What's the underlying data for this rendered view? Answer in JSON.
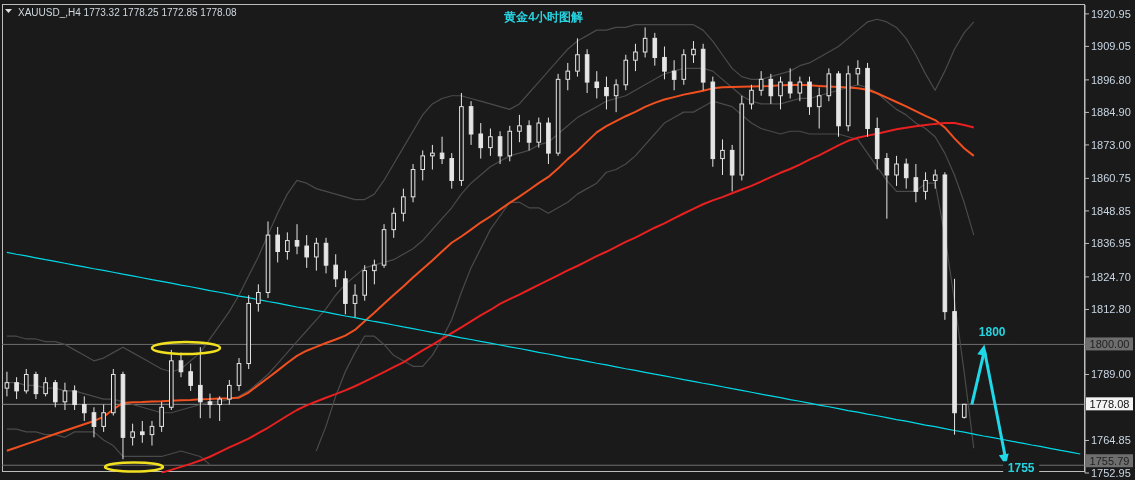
{
  "chart_data": {
    "type": "candlestick",
    "title": "黄金4小时图解",
    "annotations": [
      "XAUUSD_,H4  1773.32 1778.25 1772.85 1778.08",
      "1800",
      "1755"
    ],
    "categories": [
      null,
      null,
      null,
      null,
      null,
      null,
      null,
      null,
      null,
      null,
      null,
      null,
      null,
      null,
      null,
      null,
      null,
      null,
      null,
      null,
      null,
      null,
      null,
      null,
      null,
      null,
      null,
      null,
      null,
      null,
      null,
      null,
      null,
      null,
      null,
      null,
      null,
      null,
      null,
      null,
      null,
      null,
      null,
      null,
      null,
      null,
      null,
      null,
      null,
      null,
      null,
      null,
      null,
      null,
      null,
      null,
      null,
      null,
      null,
      null,
      null,
      null,
      null,
      null,
      null,
      null,
      null,
      null,
      null,
      null,
      null,
      null,
      null,
      null,
      null,
      null,
      null,
      null,
      null,
      null,
      null,
      null,
      null,
      null,
      null,
      null,
      null,
      null,
      null,
      null,
      null,
      null,
      null,
      null,
      null,
      null,
      null,
      null,
      null,
      null,
      null,
      null,
      null,
      null,
      null,
      null,
      null,
      null,
      null,
      null,
      null,
      null
    ],
    "color": "#e6e6e6",
    "ohlc": [
      [
        1784,
        1790,
        1781,
        1786
      ],
      [
        1786,
        1788,
        1780,
        1783
      ],
      [
        1783,
        1791,
        1782,
        1789
      ],
      [
        1789,
        1790,
        1780,
        1782
      ],
      [
        1782,
        1788,
        1781,
        1786
      ],
      [
        1786,
        1787,
        1777,
        1779
      ],
      [
        1779,
        1786,
        1776,
        1783
      ],
      [
        1783,
        1785,
        1776,
        1778
      ],
      [
        1778,
        1781,
        1772,
        1775
      ],
      [
        1775,
        1777,
        1766,
        1770
      ],
      [
        1770,
        1778,
        1768,
        1775
      ],
      [
        1775,
        1791,
        1774,
        1789
      ],
      [
        1789,
        1790,
        1758,
        1766
      ],
      [
        1766,
        1771,
        1763,
        1768
      ],
      [
        1768,
        1772,
        1764,
        1767
      ],
      [
        1767,
        1772,
        1763,
        1770
      ],
      [
        1770,
        1779,
        1768,
        1777
      ],
      [
        1777,
        1798,
        1776,
        1794
      ],
      [
        1794,
        1797,
        1788,
        1790
      ],
      [
        1790,
        1793,
        1783,
        1785
      ],
      [
        1785,
        1799,
        1773,
        1779
      ],
      [
        1779,
        1782,
        1773,
        1778
      ],
      [
        1778,
        1781,
        1772,
        1780
      ],
      [
        1780,
        1787,
        1778,
        1785
      ],
      [
        1785,
        1795,
        1783,
        1793
      ],
      [
        1793,
        1818,
        1791,
        1815
      ],
      [
        1815,
        1822,
        1812,
        1819
      ],
      [
        1819,
        1845,
        1817,
        1840
      ],
      [
        1840,
        1843,
        1830,
        1834
      ],
      [
        1834,
        1841,
        1831,
        1838
      ],
      [
        1838,
        1844,
        1833,
        1836
      ],
      [
        1836,
        1840,
        1828,
        1832
      ],
      [
        1832,
        1839,
        1827,
        1837
      ],
      [
        1837,
        1839,
        1826,
        1829
      ],
      [
        1829,
        1833,
        1821,
        1824
      ],
      [
        1824,
        1827,
        1811,
        1815
      ],
      [
        1815,
        1822,
        1810,
        1818
      ],
      [
        1818,
        1829,
        1816,
        1827
      ],
      [
        1827,
        1831,
        1822,
        1829
      ],
      [
        1829,
        1844,
        1828,
        1842
      ],
      [
        1842,
        1850,
        1839,
        1848
      ],
      [
        1848,
        1857,
        1845,
        1854
      ],
      [
        1854,
        1866,
        1852,
        1864
      ],
      [
        1864,
        1871,
        1860,
        1869
      ],
      [
        1869,
        1873,
        1864,
        1870
      ],
      [
        1870,
        1876,
        1866,
        1868
      ],
      [
        1868,
        1870,
        1857,
        1860
      ],
      [
        1860,
        1892,
        1858,
        1887
      ],
      [
        1887,
        1889,
        1873,
        1877
      ],
      [
        1877,
        1881,
        1868,
        1872
      ],
      [
        1872,
        1879,
        1869,
        1876
      ],
      [
        1876,
        1878,
        1866,
        1869
      ],
      [
        1869,
        1880,
        1867,
        1878
      ],
      [
        1878,
        1884,
        1874,
        1880
      ],
      [
        1880,
        1882,
        1871,
        1874
      ],
      [
        1874,
        1883,
        1872,
        1881
      ],
      [
        1881,
        1883,
        1866,
        1870
      ],
      [
        1870,
        1899,
        1869,
        1897
      ],
      [
        1897,
        1903,
        1893,
        1900
      ],
      [
        1900,
        1912,
        1898,
        1906
      ],
      [
        1906,
        1908,
        1892,
        1896
      ],
      [
        1896,
        1900,
        1890,
        1894
      ],
      [
        1894,
        1898,
        1886,
        1891
      ],
      [
        1891,
        1897,
        1885,
        1895
      ],
      [
        1895,
        1906,
        1893,
        1904
      ],
      [
        1904,
        1910,
        1900,
        1907
      ],
      [
        1907,
        1916,
        1905,
        1912
      ],
      [
        1912,
        1914,
        1902,
        1905
      ],
      [
        1905,
        1909,
        1897,
        1900
      ],
      [
        1900,
        1904,
        1893,
        1897
      ],
      [
        1897,
        1908,
        1895,
        1906
      ],
      [
        1906,
        1911,
        1903,
        1908
      ],
      [
        1908,
        1910,
        1893,
        1896
      ],
      [
        1896,
        1898,
        1865,
        1868
      ],
      [
        1868,
        1875,
        1862,
        1871
      ],
      [
        1871,
        1873,
        1856,
        1862
      ],
      [
        1862,
        1891,
        1860,
        1888
      ],
      [
        1888,
        1895,
        1886,
        1893
      ],
      [
        1893,
        1900,
        1891,
        1897
      ],
      [
        1897,
        1899,
        1888,
        1891
      ],
      [
        1891,
        1898,
        1886,
        1896
      ],
      [
        1896,
        1901,
        1890,
        1892
      ],
      [
        1892,
        1898,
        1889,
        1896
      ],
      [
        1896,
        1898,
        1884,
        1887
      ],
      [
        1887,
        1894,
        1879,
        1891
      ],
      [
        1891,
        1901,
        1889,
        1899
      ],
      [
        1899,
        1900,
        1876,
        1880
      ],
      [
        1880,
        1902,
        1878,
        1899
      ],
      [
        1899,
        1904,
        1895,
        1901
      ],
      [
        1901,
        1903,
        1876,
        1879
      ],
      [
        1879,
        1883,
        1864,
        1868
      ],
      [
        1868,
        1870,
        1846,
        1862
      ],
      [
        1862,
        1869,
        1858,
        1866
      ],
      [
        1866,
        1868,
        1857,
        1861
      ],
      [
        1861,
        1866,
        1852,
        1856
      ],
      [
        1856,
        1863,
        1853,
        1860
      ],
      [
        1860,
        1864,
        1857,
        1862
      ],
      [
        1862,
        1863,
        1809,
        1812
      ],
      [
        1812,
        1824,
        1767,
        1775
      ],
      [
        1773.32,
        1778.25,
        1772.85,
        1778.08
      ],
      null,
      null,
      null,
      null,
      null,
      null,
      null,
      null,
      null,
      null,
      null,
      null
    ],
    "series": [
      {
        "type": "line",
        "color": "#4a4a4a",
        "values": [
          1803,
          1803,
          1802,
          1802,
          1801,
          1801,
          1800,
          1798,
          1796,
          1794,
          1795,
          1797,
          1799,
          1797,
          1795,
          1793,
          1791,
          1790,
          1791,
          1794,
          1797,
          1802,
          1807,
          1812,
          1818,
          1825,
          1832,
          1840,
          1848,
          1855,
          1860,
          1859,
          1857,
          1856,
          1855,
          1854,
          1853,
          1853,
          1855,
          1860,
          1866,
          1872,
          1878,
          1884,
          1888,
          1890,
          1891,
          1891,
          1890,
          1889,
          1888,
          1887,
          1886,
          1888,
          1892,
          1896,
          1900,
          1904,
          1908,
          1911,
          1913,
          1915,
          1915,
          1916,
          1916,
          1917,
          1917,
          1917,
          1917,
          1917,
          1917,
          1917,
          1915,
          1911,
          1906,
          1901,
          1898,
          1897,
          1897,
          1898,
          1899,
          1900,
          1902,
          1903,
          1905,
          1907,
          1909,
          1912,
          1915,
          1918,
          1919,
          1918,
          1916,
          1912,
          1906,
          1899,
          1893,
          1900,
          1908,
          1914,
          1918,
          null,
          null,
          null,
          null,
          null,
          null,
          null,
          null,
          null,
          null,
          null
        ]
      },
      {
        "type": "line",
        "color": "#4a4a4a",
        "values": [
          1786,
          1786,
          1785,
          1785,
          1784,
          1784,
          1783,
          1783,
          1782,
          1781,
          1780,
          1780,
          1779,
          1778,
          1777,
          1776,
          1775,
          1775,
          1776,
          1777,
          1778,
          1779,
          1779,
          1780,
          1781,
          1783,
          1786,
          1789,
          1793,
          1797,
          1801,
          1805,
          1809,
          1813,
          1818,
          1822,
          1825,
          1828,
          1829,
          1830,
          1831,
          1833,
          1835,
          1838,
          1842,
          1846,
          1850,
          1855,
          1859,
          1862,
          1865,
          1867,
          1869,
          1870,
          1871,
          1873,
          1874,
          1877,
          1880,
          1883,
          1885,
          1887,
          1889,
          1890,
          1891,
          1893,
          1895,
          1897,
          1899,
          1900,
          1901,
          1901,
          1901,
          1900,
          1897,
          1894,
          1891,
          1889,
          1888,
          1888,
          1888,
          1889,
          1890,
          1890,
          1891,
          1892,
          1893,
          1894,
          1895,
          1894,
          1892,
          1889,
          1886,
          1884,
          1881,
          1879,
          1876,
          1870,
          1862,
          1852,
          1840,
          null,
          null,
          null,
          null,
          null,
          null,
          null,
          null,
          null,
          null,
          null
        ]
      },
      {
        "type": "line",
        "color": "#4a4a4a",
        "values": [
          1769,
          1769,
          1768,
          1768,
          1767,
          1767,
          1766,
          1768,
          1768,
          1768,
          1765,
          1763,
          1759,
          1759,
          1759,
          1759,
          1759,
          1760,
          1761,
          1760,
          1759,
          1756,
          null,
          null,
          null,
          null,
          null,
          null,
          null,
          null,
          null,
          null,
          1761,
          1770,
          1781,
          1790,
          1797,
          1803,
          1803,
          1800,
          1796,
          1794,
          1792,
          1792,
          1796,
          1802,
          1809,
          1819,
          1828,
          1835,
          1842,
          1847,
          1852,
          1852,
          1850,
          1850,
          1848,
          1850,
          1852,
          1855,
          1857,
          1859,
          1863,
          1864,
          1866,
          1869,
          1873,
          1877,
          1881,
          1883,
          1885,
          1885,
          1887,
          1889,
          1888,
          1887,
          1884,
          1881,
          1879,
          1878,
          1877,
          1878,
          1878,
          1877,
          1877,
          1877,
          1877,
          1876,
          1875,
          1870,
          1865,
          1860,
          1856,
          1856,
          1856,
          1859,
          1859,
          1840,
          1816,
          1790,
          1762,
          null,
          null,
          null,
          null,
          null,
          null,
          null,
          null,
          null,
          null,
          null
        ]
      },
      {
        "type": "line",
        "color": "#f05020",
        "values": [
          1761.1,
          1762.3,
          1763.5,
          1764.7,
          1766.0,
          1767.2,
          1768.4,
          1769.6,
          1770.8,
          1772.0,
          1773.5,
          1776.2,
          1778.6,
          1778.8,
          1778.9,
          1779.1,
          1779.2,
          1779.4,
          1779.6,
          1779.7,
          1779.9,
          1780.0,
          1780.2,
          1780.3,
          1780.5,
          1782.4,
          1785.1,
          1787.7,
          1790.4,
          1793.2,
          1795.8,
          1797.7,
          1799.1,
          1800.5,
          1801.8,
          1803.2,
          1805.3,
          1808.5,
          1811.6,
          1814.9,
          1818.1,
          1821.2,
          1824.5,
          1827.6,
          1830.7,
          1834.0,
          1837.2,
          1839.5,
          1842.0,
          1844.6,
          1846.8,
          1849.3,
          1851.8,
          1854.1,
          1856.5,
          1859.0,
          1861.3,
          1864.4,
          1867.8,
          1870.8,
          1874.2,
          1877.6,
          1879.9,
          1881.7,
          1883.5,
          1885.1,
          1886.9,
          1888.4,
          1889.6,
          1890.5,
          1891.4,
          1892.1,
          1892.8,
          1893.7,
          1894.1,
          1894.2,
          1894.3,
          1894.4,
          1894.5,
          1894.6,
          1894.8,
          1894.9,
          1895.0,
          1894.8,
          1894.6,
          1894.4,
          1894.2,
          1894.0,
          1893.7,
          1893.2,
          1891.9,
          1890.3,
          1888.7,
          1887.1,
          1885.4,
          1883.6,
          1882.1,
          1879.4,
          1875.4,
          1871.8,
          1869.0,
          null,
          null,
          null,
          null,
          null,
          null,
          null,
          null,
          null,
          null,
          null
        ]
      },
      {
        "type": "line",
        "color": "#e82020",
        "values": [
          null,
          null,
          null,
          null,
          null,
          null,
          null,
          null,
          null,
          null,
          null,
          null,
          null,
          null,
          null,
          null,
          1753.1,
          1754.1,
          1755.2,
          1756.3,
          1757.5,
          1758.9,
          1760.6,
          1762.3,
          1763.9,
          1765.5,
          1767.5,
          1769.5,
          1771.7,
          1773.9,
          1776.0,
          1777.7,
          1779.1,
          1780.5,
          1781.8,
          1783.2,
          1784.7,
          1786.4,
          1788.1,
          1789.9,
          1791.7,
          1793.4,
          1795.6,
          1797.8,
          1799.8,
          1802.0,
          1804.1,
          1806.2,
          1808.4,
          1810.6,
          1812.6,
          1814.8,
          1816.6,
          1818.2,
          1820.0,
          1821.8,
          1823.5,
          1825.3,
          1827.1,
          1828.7,
          1830.5,
          1832.3,
          1833.9,
          1835.7,
          1837.5,
          1839.1,
          1840.9,
          1842.7,
          1844.3,
          1846.1,
          1847.9,
          1849.6,
          1851.3,
          1852.7,
          1853.9,
          1855.3,
          1856.7,
          1858.0,
          1859.6,
          1861.2,
          1862.8,
          1864.2,
          1865.8,
          1867.6,
          1869.2,
          1871.0,
          1872.8,
          1874.5,
          1875.6,
          1876.4,
          1877.1,
          1877.9,
          1878.7,
          1879.3,
          1879.8,
          1880.3,
          1880.7,
          1881.0,
          1881.0,
          1880.3,
          1879.4,
          null,
          null,
          null,
          null,
          null,
          null,
          null,
          null,
          null,
          null,
          null
        ]
      },
      {
        "type": "line",
        "color": "#00d8e8",
        "values": [
          1833.7,
          1833.0,
          1832.4,
          1831.7,
          1831.0,
          1830.4,
          1829.7,
          1829.0,
          1828.4,
          1827.7,
          1827.1,
          1826.4,
          1825.7,
          1825.1,
          1824.4,
          1823.7,
          1823.1,
          1822.4,
          1821.7,
          1821.1,
          1820.4,
          1819.7,
          1819.1,
          1818.4,
          1817.7,
          1817.1,
          1816.4,
          1815.7,
          1815.1,
          1814.4,
          1813.7,
          1813.1,
          1812.4,
          1811.8,
          1811.1,
          1810.4,
          1809.8,
          1809.1,
          1808.4,
          1807.8,
          1807.1,
          1806.4,
          1805.8,
          1805.1,
          1804.4,
          1803.8,
          1803.1,
          1802.4,
          1801.8,
          1801.1,
          1800.5,
          1799.8,
          1799.1,
          1798.5,
          1797.8,
          1797.1,
          1796.5,
          1795.8,
          1795.1,
          1794.5,
          1793.8,
          1793.1,
          1792.5,
          1791.8,
          1791.1,
          1790.5,
          1789.8,
          1789.1,
          1788.5,
          1787.8,
          1787.1,
          1786.5,
          1785.8,
          1785.2,
          1784.5,
          1783.8,
          1783.2,
          1782.5,
          1781.8,
          1781.2,
          1780.5,
          1779.8,
          1779.2,
          1778.5,
          1777.8,
          1777.2,
          1776.5,
          1775.8,
          1775.2,
          1774.5,
          1773.9,
          1773.2,
          1772.5,
          1771.9,
          1771.2,
          1770.5,
          1769.9,
          1769.2,
          1768.5,
          1767.9,
          1767.2,
          1766.5,
          1765.9,
          1765.2,
          1764.5,
          1763.9,
          1763.2,
          1762.6,
          1761.9,
          1761.2,
          1760.6,
          1759.9
        ]
      }
    ],
    "ref_lines": [
      {
        "axis": "y",
        "value": 1800,
        "label": "1800.00",
        "color": "#6e6e6e"
      },
      {
        "axis": "y",
        "value": 1778.08,
        "label": "1778.08",
        "color": "#8a8a8a"
      },
      {
        "axis": "y",
        "value": 1755.79,
        "label": "1755.79",
        "color": "#6e6e6e"
      }
    ],
    "ylim": [
      1752.95,
      1924.2
    ],
    "yticks": [
      1920.95,
      1909.05,
      {
        "value": 1896.8,
        "label": "1896.80"
      },
      {
        "value": 1884.9,
        "label": "1884.90"
      },
      {
        "value": 1873,
        "label": "1873.00"
      },
      1860.75,
      1848.85,
      1836.95,
      {
        "value": 1824.7,
        "label": "1824.70"
      },
      {
        "value": 1812.8,
        "label": "1812.80"
      },
      {
        "value": 1789,
        "label": "1789.00"
      },
      1764.85,
      1752.95
    ],
    "tick_labels": "y",
    "grid": false,
    "legend": false,
    "marker": "none",
    "line_style": "solid"
  }
}
